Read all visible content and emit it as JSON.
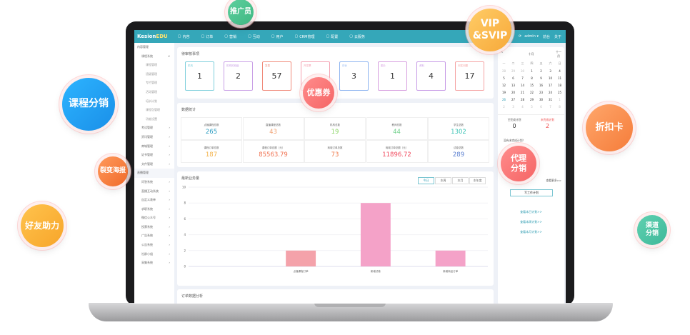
{
  "app": {
    "logo_main": "Kesion",
    "logo_accent": "EDU",
    "nav": [
      "内容",
      "订单",
      "营销",
      "互动",
      "用户",
      "CRM管理",
      "配置",
      "云服务"
    ],
    "user": "admin ▾",
    "right_links": [
      "前台",
      "关于"
    ]
  },
  "sidebar": {
    "items": [
      {
        "label": "内容管理",
        "level": "top"
      },
      {
        "label": "课程系统",
        "level": "group",
        "chev": "∨"
      },
      {
        "label": "课程管理",
        "level": "sub"
      },
      {
        "label": "班级管理",
        "level": "sub"
      },
      {
        "label": "专栏管理",
        "level": "sub"
      },
      {
        "label": "活动管理",
        "level": "sub"
      },
      {
        "label": "培训计划",
        "level": "sub"
      },
      {
        "label": "课程包管理",
        "level": "sub"
      },
      {
        "label": "功能设置",
        "level": "sub"
      },
      {
        "label": "考试管理",
        "level": "group",
        "chev": "›"
      },
      {
        "label": "资讯管理",
        "level": "group",
        "chev": "›"
      },
      {
        "label": "商城管理",
        "level": "group",
        "chev": "›"
      },
      {
        "label": "证书管理",
        "level": "group",
        "chev": "›"
      },
      {
        "label": "文件管理",
        "level": "group",
        "chev": "›"
      },
      {
        "label": "直播管理",
        "level": "top"
      },
      {
        "label": "问答系统",
        "level": "group",
        "chev": "›"
      },
      {
        "label": "直播互动系统",
        "level": "group",
        "chev": "›"
      },
      {
        "label": "自定义表单",
        "level": "group",
        "chev": "›"
      },
      {
        "label": "求职系统",
        "level": "group",
        "chev": "›"
      },
      {
        "label": "微信公众号",
        "level": "group",
        "chev": "›"
      },
      {
        "label": "投票系统",
        "level": "group",
        "chev": "›"
      },
      {
        "label": "广告系统",
        "level": "group",
        "chev": "›"
      },
      {
        "label": "公告系统",
        "level": "group",
        "chev": "›"
      },
      {
        "label": "社群小组",
        "level": "group",
        "chev": "›"
      },
      {
        "label": "采集系统",
        "level": "group",
        "chev": "›"
      }
    ]
  },
  "pending": {
    "title": "待审核事项",
    "cards": [
      {
        "label": "机构",
        "value": "1",
        "color": "#7fcfdc"
      },
      {
        "label": "机构的班级",
        "value": "2",
        "color": "#c9a0e6"
      },
      {
        "label": "发表",
        "value": "57",
        "color": "#f08a7a"
      },
      {
        "label": "开发票",
        "value": "",
        "color": "#f4a0b0"
      },
      {
        "label": "评价",
        "value": "3",
        "color": "#8db4f0"
      },
      {
        "label": "图片",
        "value": "1",
        "color": "#d79fe0"
      },
      {
        "label": "资料",
        "value": "4",
        "color": "#c79ae6"
      },
      {
        "label": "问答问题",
        "value": "17",
        "color": "#f5a3a3"
      }
    ]
  },
  "stats": {
    "title": "数据统计",
    "items": [
      {
        "label": "点播课程总数",
        "value": "265",
        "color": "#2f9ec2"
      },
      {
        "label": "直播课程总数",
        "value": "43",
        "color": "#f0a070"
      },
      {
        "label": "机构总数",
        "value": "19",
        "color": "#8fd66a"
      },
      {
        "label": "教师总数",
        "value": "44",
        "color": "#6fd08a"
      },
      {
        "label": "学生总数",
        "value": "1302",
        "color": "#3cc3b5"
      },
      {
        "label": "课程订单总数",
        "value": "187",
        "color": "#f3b24a"
      },
      {
        "label": "课程订单总额（元）",
        "value": "85563.79",
        "color": "#f0704f"
      },
      {
        "label": "商城订单总数",
        "value": "73",
        "color": "#f07a4a"
      },
      {
        "label": "商城订单总额（元）",
        "value": "11896.72",
        "color": "#f04a5e"
      },
      {
        "label": "试卷总数",
        "value": "289",
        "color": "#5a7fd0"
      }
    ]
  },
  "business": {
    "title": "最新业务量",
    "tabs": [
      "今日",
      "本周",
      "本月",
      "本年度"
    ],
    "active_tab": "今日"
  },
  "chart_data": {
    "type": "bar",
    "categories": [
      "",
      "点播课程订单",
      "新增试卷",
      "新增商品订单"
    ],
    "values": [
      0,
      2,
      8,
      2
    ],
    "colors": [
      "#f4bba0",
      "#f4a2aa",
      "#f4a2c8",
      "#f4a2c8"
    ],
    "ylim": [
      0,
      10
    ],
    "yticks": [
      0,
      2,
      4,
      6,
      8,
      10
    ],
    "grid": true
  },
  "orders": {
    "title": "订单数据分析"
  },
  "calendar": {
    "month": "十月",
    "prev_label": "<",
    "next_label": "十一月",
    "weekdays": [
      "一",
      "二",
      "三",
      "四",
      "五",
      "六",
      "日"
    ],
    "rows": [
      [
        "28",
        "29",
        "30",
        "1",
        "2",
        "3",
        "4"
      ],
      [
        "5",
        "6",
        "7",
        "8",
        "9",
        "10",
        "11"
      ],
      [
        "12",
        "13",
        "14",
        "15",
        "16",
        "17",
        "18"
      ],
      [
        "19",
        "20",
        "21",
        "22",
        "23",
        "24",
        "25"
      ],
      [
        "26",
        "27",
        "28",
        "29",
        "30",
        "31",
        "1"
      ],
      [
        "2",
        "3",
        "4",
        "5",
        "6",
        "7",
        "8"
      ]
    ],
    "today": "26"
  },
  "plans": {
    "done_label": "已完成计划",
    "done": "0",
    "todo_label": "未完成计划",
    "todo": "2",
    "empty_text": "没有未完成计划！",
    "more": "查看更多>>",
    "write": "写工作计划",
    "links": [
      "查看本日计划>>",
      "查看本周计划>>",
      "查看本月计划>>"
    ]
  },
  "bubbles": [
    "推广员",
    "VIP\n&SVIP",
    "课程分销",
    "优惠券",
    "折扣卡",
    "裂变海报",
    "代理\n分销",
    "好友助力",
    "渠道\n分销"
  ]
}
